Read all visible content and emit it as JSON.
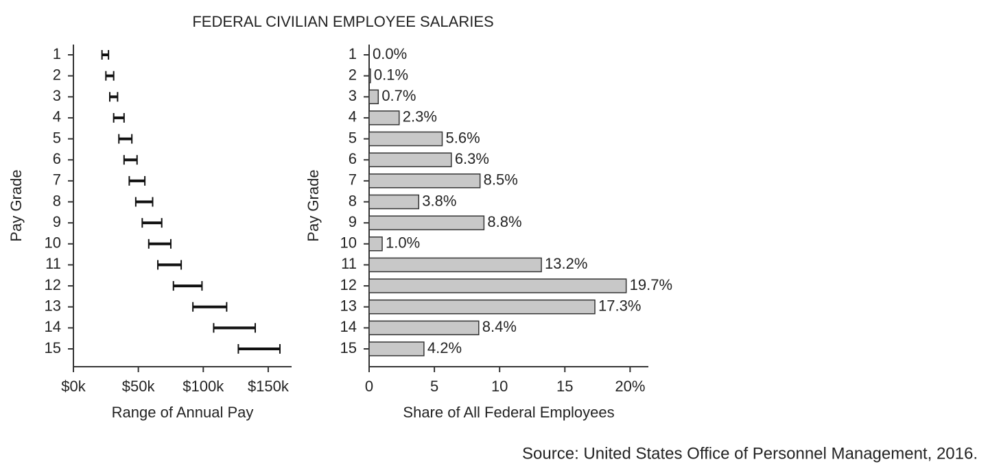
{
  "title": "FEDERAL CIVILIAN EMPLOYEE SALARIES",
  "source": "Source: United States Office of Personnel Management, 2016.",
  "chart_data": [
    {
      "type": "range",
      "ylabel": "Pay Grade",
      "xlabel": "Range of Annual Pay",
      "categories": [
        "1",
        "2",
        "3",
        "4",
        "5",
        "6",
        "7",
        "8",
        "9",
        "10",
        "11",
        "12",
        "13",
        "14",
        "15"
      ],
      "low": [
        22,
        25,
        28,
        31,
        35,
        39,
        43,
        48,
        53,
        58,
        65,
        77,
        92,
        108,
        127
      ],
      "high": [
        27,
        31,
        34,
        39,
        45,
        49,
        55,
        61,
        68,
        75,
        83,
        99,
        118,
        140,
        159
      ],
      "color": "#111111",
      "xlim": [
        0,
        168
      ],
      "xticks": [
        {
          "value": 0,
          "label": "$0k"
        },
        {
          "value": 50,
          "label": "$50k"
        },
        {
          "value": 100,
          "label": "$100k"
        },
        {
          "value": 150,
          "label": "$150k"
        }
      ]
    },
    {
      "type": "bar",
      "ylabel": "Pay Grade",
      "xlabel": "Share of All Federal Employees",
      "categories": [
        "1",
        "2",
        "3",
        "4",
        "5",
        "6",
        "7",
        "8",
        "9",
        "10",
        "11",
        "12",
        "13",
        "14",
        "15"
      ],
      "values": [
        0.0,
        0.1,
        0.7,
        2.3,
        5.6,
        6.3,
        8.5,
        3.8,
        8.8,
        1.0,
        13.2,
        19.7,
        17.3,
        8.4,
        4.2
      ],
      "value_labels": [
        "0.0%",
        "0.1%",
        "0.7%",
        "2.3%",
        "5.6%",
        "6.3%",
        "8.5%",
        "3.8%",
        "8.8%",
        "1.0%",
        "13.2%",
        "19.7%",
        "17.3%",
        "8.4%",
        "4.2%"
      ],
      "color": "#c8c8c8",
      "xlim": [
        0,
        21.4
      ],
      "xticks": [
        0,
        5,
        10,
        15,
        {
          "value": 20,
          "label": "20%"
        }
      ]
    }
  ]
}
